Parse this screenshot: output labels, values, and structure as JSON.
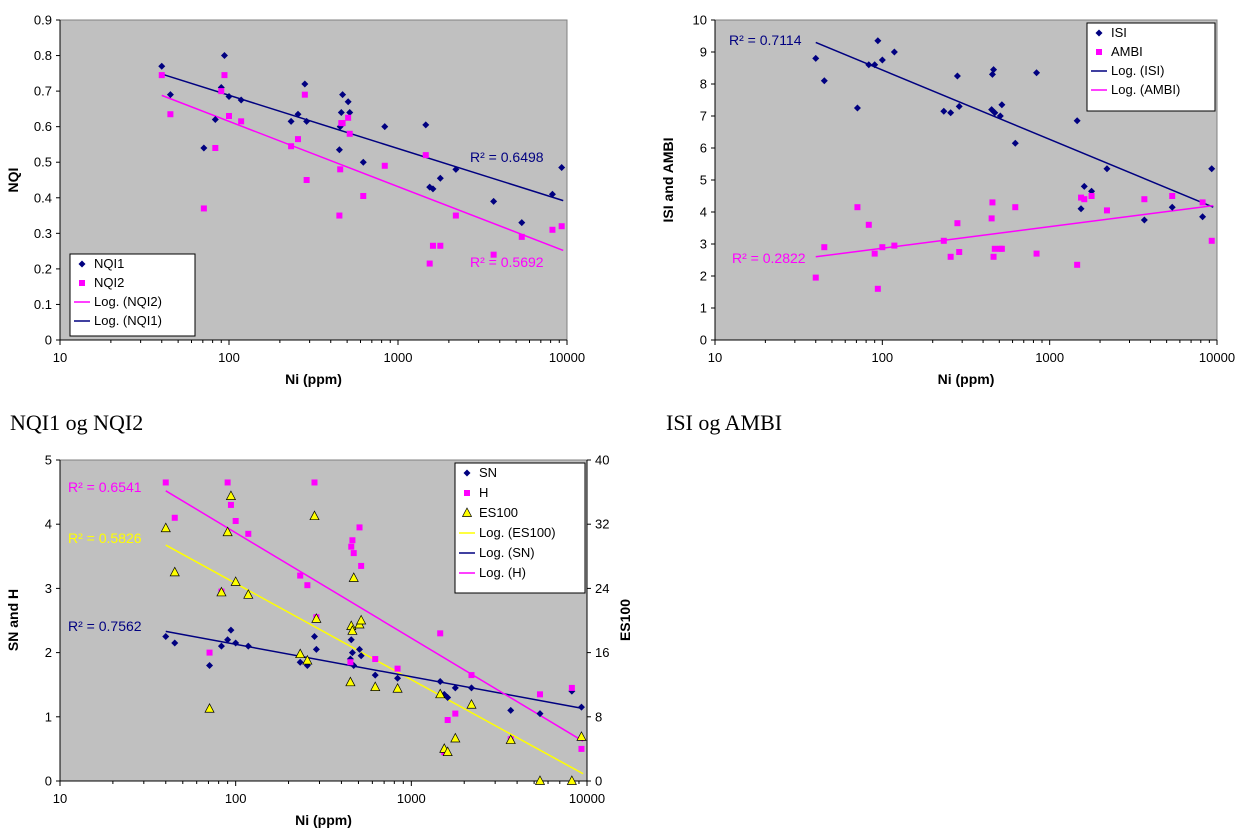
{
  "colors": {
    "navy": "#000080",
    "magenta": "#ff00ff",
    "yellow": "#ffff00",
    "plot_bg": "#c0c0c0"
  },
  "captions": [
    "NQI1 og NQI2",
    "ISI og AMBI"
  ],
  "chart_data": [
    {
      "type": "scatter",
      "x_scale": "log",
      "xlabel": "Ni (ppm)",
      "ylabel": "NQI",
      "xlim": [
        10,
        10000
      ],
      "ylim": [
        0,
        0.9
      ],
      "x_ticks": [
        "10",
        "100",
        "1000",
        "10000"
      ],
      "y_ticks": [
        "0",
        "0.1",
        "0.2",
        "0.3",
        "0.4",
        "0.5",
        "0.6",
        "0.7",
        "0.8",
        "0.9"
      ],
      "grid": false,
      "legend_position": "bottom-left",
      "legend": [
        "NQI1",
        "NQI2",
        "Log. (NQI2)",
        "Log. (NQI1)"
      ],
      "series": [
        {
          "name": "NQI1",
          "marker": "diamond",
          "color": "#000080",
          "x": [
            40,
            45,
            71,
            83,
            90,
            94,
            100,
            118,
            233,
            256,
            281,
            288,
            450,
            455,
            462,
            470,
            507,
            518,
            623,
            835,
            1460,
            1540,
            1610,
            1780,
            2200,
            3680,
            5400,
            8200,
            9300
          ],
          "y": [
            0.77,
            0.69,
            0.54,
            0.62,
            0.71,
            0.8,
            0.685,
            0.675,
            0.615,
            0.635,
            0.72,
            0.615,
            0.535,
            0.6,
            0.64,
            0.69,
            0.67,
            0.64,
            0.5,
            0.6,
            0.605,
            0.43,
            0.425,
            0.455,
            0.48,
            0.39,
            0.33,
            0.41,
            0.485
          ]
        },
        {
          "name": "NQI2",
          "marker": "square",
          "color": "#ff00ff",
          "x": [
            40,
            45,
            71,
            83,
            90,
            94,
            100,
            118,
            233,
            256,
            281,
            288,
            450,
            455,
            462,
            470,
            507,
            518,
            623,
            835,
            1460,
            1540,
            1610,
            1780,
            2200,
            3680,
            5400,
            8200,
            9300
          ],
          "y": [
            0.745,
            0.635,
            0.37,
            0.54,
            0.7,
            0.745,
            0.63,
            0.615,
            0.545,
            0.565,
            0.69,
            0.45,
            0.35,
            0.48,
            0.61,
            0.61,
            0.625,
            0.58,
            0.405,
            0.49,
            0.52,
            0.215,
            0.265,
            0.265,
            0.35,
            0.24,
            0.29,
            0.31,
            0.32
          ]
        }
      ],
      "trendlines": [
        {
          "name": "Log. (NQI2)",
          "color": "#ff00ff",
          "x": [
            40,
            9500
          ],
          "y": [
            0.688,
            0.252
          ],
          "r2": "R² = 0.5692"
        },
        {
          "name": "Log. (NQI1)",
          "color": "#000080",
          "x": [
            40,
            9500
          ],
          "y": [
            0.748,
            0.392
          ],
          "r2": "R² = 0.6498"
        }
      ]
    },
    {
      "type": "scatter",
      "x_scale": "log",
      "xlabel": "Ni (ppm)",
      "ylabel": "ISI and AMBI",
      "xlim": [
        10,
        10000
      ],
      "ylim": [
        0,
        10
      ],
      "x_ticks": [
        "10",
        "100",
        "1000",
        "10000"
      ],
      "y_ticks": [
        "0",
        "1",
        "2",
        "3",
        "4",
        "5",
        "6",
        "7",
        "8",
        "9",
        "10"
      ],
      "grid": false,
      "legend_position": "top-right",
      "legend": [
        "ISI",
        "AMBI",
        "Log. (ISI)",
        "Log. (AMBI)"
      ],
      "series": [
        {
          "name": "ISI",
          "marker": "diamond",
          "color": "#000080",
          "x": [
            40,
            45,
            71,
            83,
            90,
            94,
            100,
            118,
            233,
            256,
            281,
            288,
            450,
            455,
            462,
            470,
            507,
            518,
            623,
            835,
            1460,
            1540,
            1610,
            1780,
            2200,
            3680,
            5400,
            8200,
            9300
          ],
          "y": [
            8.8,
            8.1,
            7.25,
            8.6,
            8.6,
            9.35,
            8.75,
            9.0,
            7.15,
            7.1,
            8.25,
            7.3,
            7.2,
            8.3,
            8.45,
            7.1,
            7.0,
            7.35,
            6.15,
            8.35,
            6.85,
            4.1,
            4.8,
            4.65,
            5.35,
            3.75,
            4.15,
            3.85,
            5.35
          ]
        },
        {
          "name": "AMBI",
          "marker": "square",
          "color": "#ff00ff",
          "x": [
            40,
            45,
            71,
            83,
            90,
            94,
            100,
            118,
            233,
            256,
            281,
            288,
            450,
            455,
            462,
            470,
            507,
            518,
            623,
            835,
            1460,
            1540,
            1610,
            1780,
            2200,
            3680,
            5400,
            8200,
            9300
          ],
          "y": [
            1.95,
            2.9,
            4.15,
            3.6,
            2.7,
            1.6,
            2.9,
            2.95,
            3.1,
            2.6,
            3.65,
            2.75,
            3.8,
            4.3,
            2.6,
            2.85,
            2.85,
            2.85,
            4.15,
            2.7,
            2.35,
            4.45,
            4.4,
            4.5,
            4.05,
            4.4,
            4.5,
            4.3,
            3.1
          ]
        }
      ],
      "trendlines": [
        {
          "name": "Log. (ISI)",
          "color": "#000080",
          "x": [
            40,
            9500
          ],
          "y": [
            9.3,
            4.15
          ],
          "r2": "R² = 0.7114"
        },
        {
          "name": "Log. (AMBI)",
          "color": "#ff00ff",
          "x": [
            40,
            9500
          ],
          "y": [
            2.6,
            4.2
          ],
          "r2": "R² = 0.2822"
        }
      ]
    },
    {
      "type": "scatter",
      "x_scale": "log",
      "xlabel": "Ni (ppm)",
      "ylabel": "SN and H",
      "y2label": "ES100",
      "xlim": [
        10,
        10000
      ],
      "ylim": [
        0,
        5
      ],
      "y2lim": [
        0,
        40
      ],
      "x_ticks": [
        "10",
        "100",
        "1000",
        "10000"
      ],
      "y_ticks": [
        "0",
        "1",
        "2",
        "3",
        "4",
        "5"
      ],
      "y2_ticks": [
        "0",
        "8",
        "16",
        "24",
        "32",
        "40"
      ],
      "grid": false,
      "legend_position": "top-right",
      "legend": [
        "SN",
        "H",
        "ES100",
        "Log. (ES100)",
        "Log. (SN)",
        "Log. (H)"
      ],
      "series": [
        {
          "name": "SN",
          "marker": "diamond",
          "color": "#000080",
          "axis": "left",
          "x": [
            40,
            45,
            71,
            83,
            90,
            94,
            100,
            118,
            233,
            256,
            281,
            288,
            450,
            455,
            462,
            470,
            507,
            518,
            623,
            835,
            1460,
            1540,
            1610,
            1780,
            2200,
            3680,
            5400,
            8200,
            9300
          ],
          "y": [
            2.25,
            2.15,
            1.8,
            2.1,
            2.2,
            2.35,
            2.15,
            2.1,
            1.85,
            1.8,
            2.25,
            2.05,
            1.9,
            2.2,
            2.0,
            1.8,
            2.05,
            1.95,
            1.65,
            1.6,
            1.55,
            1.35,
            1.3,
            1.45,
            1.45,
            1.1,
            1.05,
            1.4,
            1.15
          ]
        },
        {
          "name": "H",
          "marker": "square",
          "color": "#ff00ff",
          "axis": "left",
          "x": [
            40,
            45,
            71,
            83,
            90,
            94,
            100,
            118,
            233,
            256,
            281,
            288,
            450,
            455,
            462,
            470,
            507,
            518,
            623,
            835,
            1460,
            1540,
            1610,
            1780,
            2200,
            3680,
            5400,
            8200,
            9300
          ],
          "y": [
            4.65,
            4.1,
            2.0,
            2.95,
            4.65,
            4.3,
            4.05,
            3.85,
            3.2,
            3.05,
            4.65,
            2.55,
            1.85,
            3.65,
            3.75,
            3.55,
            3.95,
            3.35,
            1.9,
            1.75,
            2.3,
            0.45,
            0.95,
            1.05,
            1.65,
            0.65,
            1.35,
            1.45,
            0.5
          ]
        },
        {
          "name": "ES100",
          "marker": "triangle",
          "color": "#ffff00",
          "axis": "right",
          "x": [
            40,
            45,
            71,
            83,
            90,
            94,
            100,
            118,
            233,
            256,
            281,
            288,
            450,
            455,
            462,
            470,
            507,
            518,
            623,
            835,
            1460,
            1540,
            1610,
            1780,
            2200,
            3680,
            5400,
            8200,
            9300
          ],
          "y": [
            31.5,
            26.0,
            9.0,
            23.5,
            31.0,
            35.5,
            24.8,
            23.2,
            15.8,
            15.0,
            33.0,
            20.2,
            12.3,
            19.3,
            18.7,
            25.3,
            19.5,
            20.0,
            11.7,
            11.5,
            10.8,
            4.0,
            3.6,
            5.3,
            9.5,
            5.1,
            0,
            0,
            5.5
          ]
        }
      ],
      "trendlines": [
        {
          "name": "Log. (ES100)",
          "color": "#ffff00",
          "axis": "right",
          "x": [
            40,
            9500
          ],
          "y": [
            29.4,
            0.9
          ],
          "r2": "R² = 0.5826"
        },
        {
          "name": "Log. (SN)",
          "color": "#000080",
          "axis": "left",
          "x": [
            40,
            9500
          ],
          "y": [
            2.33,
            1.13
          ],
          "r2": "R² = 0.7562"
        },
        {
          "name": "Log. (H)",
          "color": "#ff00ff",
          "axis": "left",
          "x": [
            40,
            9500
          ],
          "y": [
            4.52,
            0.62
          ],
          "r2": "R² = 0.6541"
        }
      ]
    }
  ]
}
